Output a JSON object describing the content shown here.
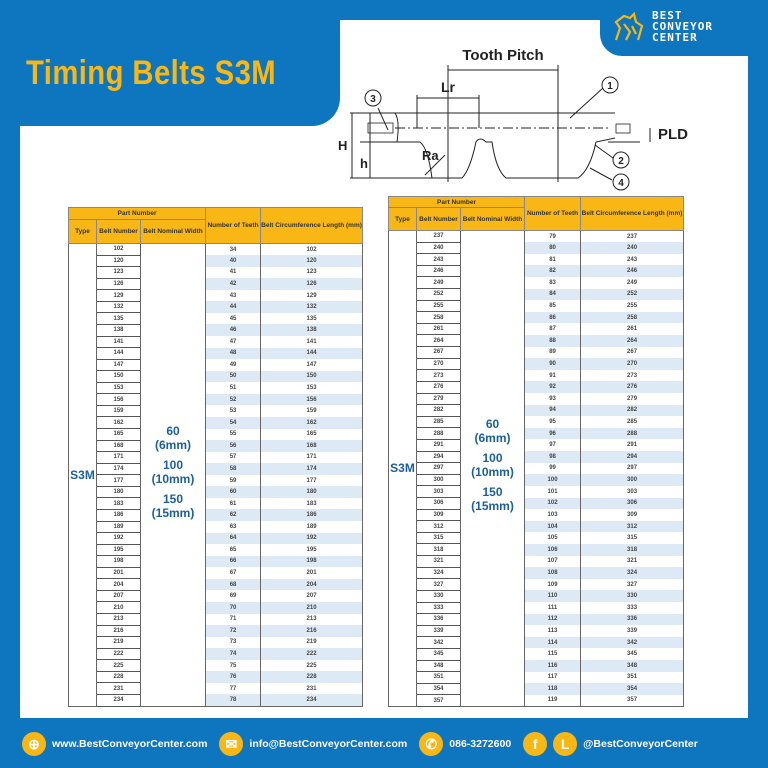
{
  "header": {
    "title": "Timing Belts S3M",
    "brand": [
      "BEST",
      "CONVEYOR",
      "CENTER"
    ]
  },
  "diagram": {
    "labels": {
      "tooth_pitch": "Tooth Pitch",
      "lr": "Lr",
      "pld": "PLD",
      "h_total": "H",
      "h_tooth": "h",
      "ra": "Ra",
      "c1": "1",
      "c2": "2",
      "c3": "3",
      "c4": "4"
    }
  },
  "columns": {
    "part_number": "Part Number",
    "type": "Type",
    "belt_number": "Belt Number",
    "nominal_width": "Belt Nominal Width",
    "teeth": "Number of Teeth",
    "length": "Belt Circumference Length (mm)"
  },
  "type_value": "S3M",
  "widths": [
    {
      "v": "60",
      "mm": "(6mm)"
    },
    {
      "v": "100",
      "mm": "(10mm)"
    },
    {
      "v": "150",
      "mm": "(15mm)"
    }
  ],
  "left_table": {
    "rows": [
      [
        "102",
        "34",
        "102"
      ],
      [
        "120",
        "40",
        "120"
      ],
      [
        "123",
        "41",
        "123"
      ],
      [
        "126",
        "42",
        "126"
      ],
      [
        "129",
        "43",
        "129"
      ],
      [
        "132",
        "44",
        "132"
      ],
      [
        "135",
        "45",
        "135"
      ],
      [
        "138",
        "46",
        "138"
      ],
      [
        "141",
        "47",
        "141"
      ],
      [
        "144",
        "48",
        "144"
      ],
      [
        "147",
        "49",
        "147"
      ],
      [
        "150",
        "50",
        "150"
      ],
      [
        "153",
        "51",
        "153"
      ],
      [
        "156",
        "52",
        "156"
      ],
      [
        "159",
        "53",
        "159"
      ],
      [
        "162",
        "54",
        "162"
      ],
      [
        "165",
        "55",
        "165"
      ],
      [
        "168",
        "56",
        "168"
      ],
      [
        "171",
        "57",
        "171"
      ],
      [
        "174",
        "58",
        "174"
      ],
      [
        "177",
        "59",
        "177"
      ],
      [
        "180",
        "60",
        "180"
      ],
      [
        "183",
        "61",
        "183"
      ],
      [
        "186",
        "62",
        "186"
      ],
      [
        "189",
        "63",
        "189"
      ],
      [
        "192",
        "64",
        "192"
      ],
      [
        "195",
        "65",
        "195"
      ],
      [
        "198",
        "66",
        "198"
      ],
      [
        "201",
        "67",
        "201"
      ],
      [
        "204",
        "68",
        "204"
      ],
      [
        "207",
        "69",
        "207"
      ],
      [
        "210",
        "70",
        "210"
      ],
      [
        "213",
        "71",
        "213"
      ],
      [
        "216",
        "72",
        "216"
      ],
      [
        "219",
        "73",
        "219"
      ],
      [
        "222",
        "74",
        "222"
      ],
      [
        "225",
        "75",
        "225"
      ],
      [
        "228",
        "76",
        "228"
      ],
      [
        "231",
        "77",
        "231"
      ],
      [
        "234",
        "78",
        "234"
      ]
    ]
  },
  "right_table": {
    "rows": [
      [
        "237",
        "79",
        "237"
      ],
      [
        "240",
        "80",
        "240"
      ],
      [
        "243",
        "81",
        "243"
      ],
      [
        "246",
        "82",
        "246"
      ],
      [
        "249",
        "83",
        "249"
      ],
      [
        "252",
        "84",
        "252"
      ],
      [
        "255",
        "85",
        "255"
      ],
      [
        "258",
        "86",
        "258"
      ],
      [
        "261",
        "87",
        "261"
      ],
      [
        "264",
        "88",
        "264"
      ],
      [
        "267",
        "89",
        "267"
      ],
      [
        "270",
        "90",
        "270"
      ],
      [
        "273",
        "91",
        "273"
      ],
      [
        "276",
        "92",
        "276"
      ],
      [
        "279",
        "93",
        "279"
      ],
      [
        "282",
        "94",
        "282"
      ],
      [
        "285",
        "95",
        "285"
      ],
      [
        "288",
        "96",
        "288"
      ],
      [
        "291",
        "97",
        "291"
      ],
      [
        "294",
        "98",
        "294"
      ],
      [
        "297",
        "99",
        "297"
      ],
      [
        "300",
        "100",
        "300"
      ],
      [
        "303",
        "101",
        "303"
      ],
      [
        "306",
        "102",
        "306"
      ],
      [
        "309",
        "103",
        "309"
      ],
      [
        "312",
        "104",
        "312"
      ],
      [
        "315",
        "105",
        "315"
      ],
      [
        "318",
        "106",
        "318"
      ],
      [
        "321",
        "107",
        "321"
      ],
      [
        "324",
        "108",
        "324"
      ],
      [
        "327",
        "109",
        "327"
      ],
      [
        "330",
        "110",
        "330"
      ],
      [
        "333",
        "111",
        "333"
      ],
      [
        "336",
        "112",
        "336"
      ],
      [
        "339",
        "113",
        "339"
      ],
      [
        "342",
        "114",
        "342"
      ],
      [
        "345",
        "115",
        "345"
      ],
      [
        "348",
        "116",
        "348"
      ],
      [
        "351",
        "117",
        "351"
      ],
      [
        "354",
        "118",
        "354"
      ],
      [
        "357",
        "119",
        "357"
      ]
    ]
  },
  "footer": {
    "website": "www.BestConveyorCenter.com",
    "email": "info@BestConveyorCenter.com",
    "phone": "086-3272600",
    "social": "@BestConveyorCenter",
    "line_letter": "L",
    "fb_letter": "f"
  },
  "colors": {
    "brand_blue": "#0d76bf",
    "accent_yellow": "#f8b714",
    "row_shade": "#dde9f4"
  }
}
